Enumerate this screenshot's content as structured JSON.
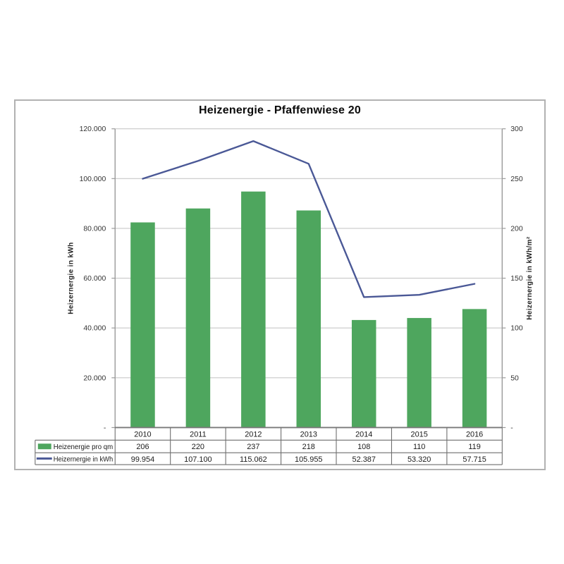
{
  "chart_data": {
    "type": "combo-bar-line",
    "title": "Heizenergie - Pfaffenwiese 20",
    "categories": [
      "2010",
      "2011",
      "2012",
      "2013",
      "2014",
      "2015",
      "2016"
    ],
    "series": [
      {
        "name": "Heizenergie pro qm",
        "type": "bar",
        "axis": "right",
        "color": "#4ea65e",
        "values": [
          206,
          220,
          237,
          218,
          108,
          110,
          119
        ],
        "labels": [
          "206",
          "220",
          "237",
          "218",
          "108",
          "110",
          "119"
        ]
      },
      {
        "name": "Heizernergie in kWh",
        "type": "line",
        "axis": "left",
        "color": "#4a5896",
        "values": [
          99954,
          107100,
          115062,
          105955,
          52387,
          53320,
          57715
        ],
        "labels": [
          "99.954",
          "107.100",
          "115.062",
          "105.955",
          "52.387",
          "53.320",
          "57.715"
        ]
      }
    ],
    "left_axis": {
      "label": "Heizernergie in kWh",
      "min": 0,
      "max": 120000,
      "step": 20000,
      "tick_labels": [
        "-",
        "20.000",
        "40.000",
        "60.000",
        "80.000",
        "100.000",
        "120.000"
      ]
    },
    "right_axis": {
      "label": "Heizernergie in kWh/m²",
      "min": 0,
      "max": 300,
      "step": 50,
      "tick_labels": [
        "-",
        "50",
        "100",
        "150",
        "200",
        "250",
        "300"
      ]
    },
    "grid": true,
    "legend_position": "table-left",
    "colors": {
      "gridline": "#c8c8c8",
      "axis": "#9a9a9a",
      "x_axis": "#7a7a7a",
      "table_border": "#6e6e6e",
      "tick_text": "#333333",
      "table_text": "#1a1a1a",
      "axis_title_text": "#222222"
    }
  }
}
